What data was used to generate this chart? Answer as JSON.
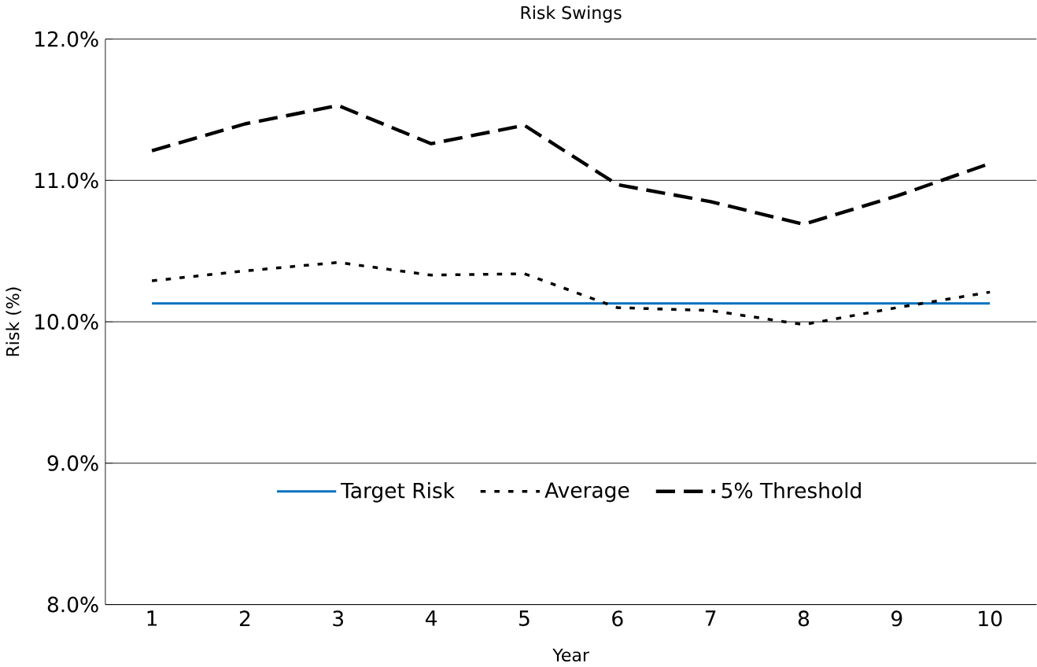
{
  "chart_data": {
    "type": "line",
    "title": "Risk Swings",
    "xlabel": "Year",
    "ylabel": "Risk (%)",
    "categories": [
      "1",
      "2",
      "3",
      "4",
      "5",
      "6",
      "7",
      "8",
      "9",
      "10"
    ],
    "ylim": [
      8.0,
      12.0
    ],
    "yticks": [
      {
        "value": 8.0,
        "label": "8.0%"
      },
      {
        "value": 9.0,
        "label": "9.0%"
      },
      {
        "value": 10.0,
        "label": "10.0%"
      },
      {
        "value": 11.0,
        "label": "11.0%"
      },
      {
        "value": 12.0,
        "label": "12.0%"
      }
    ],
    "grid": "y",
    "legend": "bottom",
    "marker": "none",
    "series": [
      {
        "name": "Target Risk",
        "color": "#0070c0",
        "line_style": "solid",
        "values": [
          10.13,
          10.13,
          10.13,
          10.13,
          10.13,
          10.13,
          10.13,
          10.13,
          10.13,
          10.13
        ]
      },
      {
        "name": "Average",
        "color": "#000000",
        "line_style": "dotted",
        "values": [
          10.29,
          10.36,
          10.42,
          10.33,
          10.34,
          10.1,
          10.08,
          9.98,
          10.1,
          10.21
        ]
      },
      {
        "name": "5% Threshold",
        "color": "#000000",
        "line_style": "dashed",
        "values": [
          11.21,
          11.4,
          11.53,
          11.26,
          11.39,
          10.97,
          10.85,
          10.69,
          10.89,
          11.12
        ]
      }
    ]
  }
}
